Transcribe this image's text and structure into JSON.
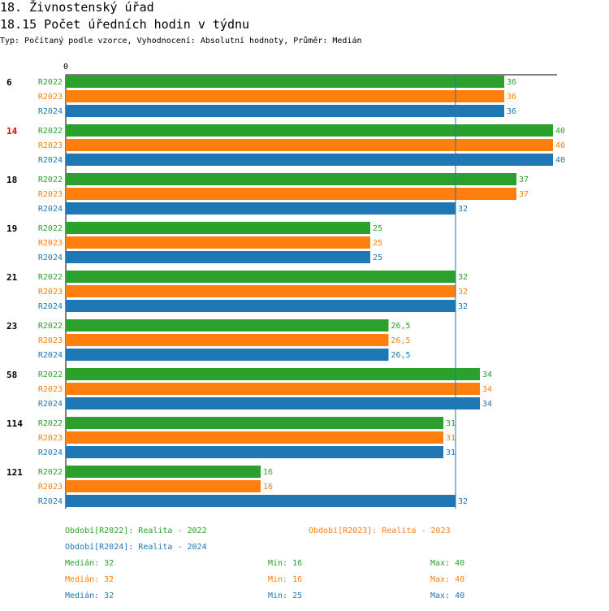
{
  "header": {
    "title": "18. Živnostenský úřad",
    "subtitle": "18.15 Počet úředních hodin v týdnu",
    "description": "Typ: Počítaný podle vzorce, Vyhodnocení: Absolutní hodnoty, Průměr: Medián"
  },
  "chart_data": {
    "type": "bar",
    "orientation": "horizontal",
    "axis_zero_label": "0",
    "xlim": [
      0,
      40
    ],
    "median_line": 32,
    "groups": [
      {
        "label": "6",
        "highlight": false,
        "values": [
          36,
          36,
          36
        ],
        "labels": [
          "36",
          "36",
          "36"
        ]
      },
      {
        "label": "14",
        "highlight": true,
        "values": [
          40,
          40,
          40
        ],
        "labels": [
          "40",
          "40",
          "40"
        ]
      },
      {
        "label": "18",
        "highlight": false,
        "values": [
          37,
          37,
          32
        ],
        "labels": [
          "37",
          "37",
          "32"
        ]
      },
      {
        "label": "19",
        "highlight": false,
        "values": [
          25,
          25,
          25
        ],
        "labels": [
          "25",
          "25",
          "25"
        ]
      },
      {
        "label": "21",
        "highlight": false,
        "values": [
          32,
          32,
          32
        ],
        "labels": [
          "32",
          "32",
          "32"
        ]
      },
      {
        "label": "23",
        "highlight": false,
        "values": [
          26.5,
          26.5,
          26.5
        ],
        "labels": [
          "26,5",
          "26,5",
          "26,5"
        ]
      },
      {
        "label": "58",
        "highlight": false,
        "values": [
          34,
          34,
          34
        ],
        "labels": [
          "34",
          "34",
          "34"
        ]
      },
      {
        "label": "114",
        "highlight": false,
        "values": [
          31,
          31,
          31
        ],
        "labels": [
          "31",
          "31",
          "31"
        ]
      },
      {
        "label": "121",
        "highlight": false,
        "values": [
          16,
          16,
          32
        ],
        "labels": [
          "16",
          "16",
          "32"
        ]
      }
    ],
    "series": [
      {
        "name": "R2022",
        "color": "#2ca02c"
      },
      {
        "name": "R2023",
        "color": "#ff7f0e"
      },
      {
        "name": "R2024",
        "color": "#1f77b4"
      }
    ]
  },
  "legend": {
    "periods": [
      {
        "text": "Období[R2022]: Realita - 2022",
        "color": "#2ca02c"
      },
      {
        "text": "Období[R2023]: Realita - 2023",
        "color": "#ff7f0e"
      },
      {
        "text": "Období[R2024]: Realita - 2024",
        "color": "#1f77b4"
      }
    ],
    "stats": [
      {
        "median": "Medián: 32",
        "min": "Min: 16",
        "max": "Max: 40",
        "color": "#2ca02c"
      },
      {
        "median": "Medián: 32",
        "min": "Min: 16",
        "max": "Max: 40",
        "color": "#ff7f0e"
      },
      {
        "median": "Medián: 32",
        "min": "Min: 25",
        "max": "Max: 40",
        "color": "#1f77b4"
      }
    ]
  }
}
